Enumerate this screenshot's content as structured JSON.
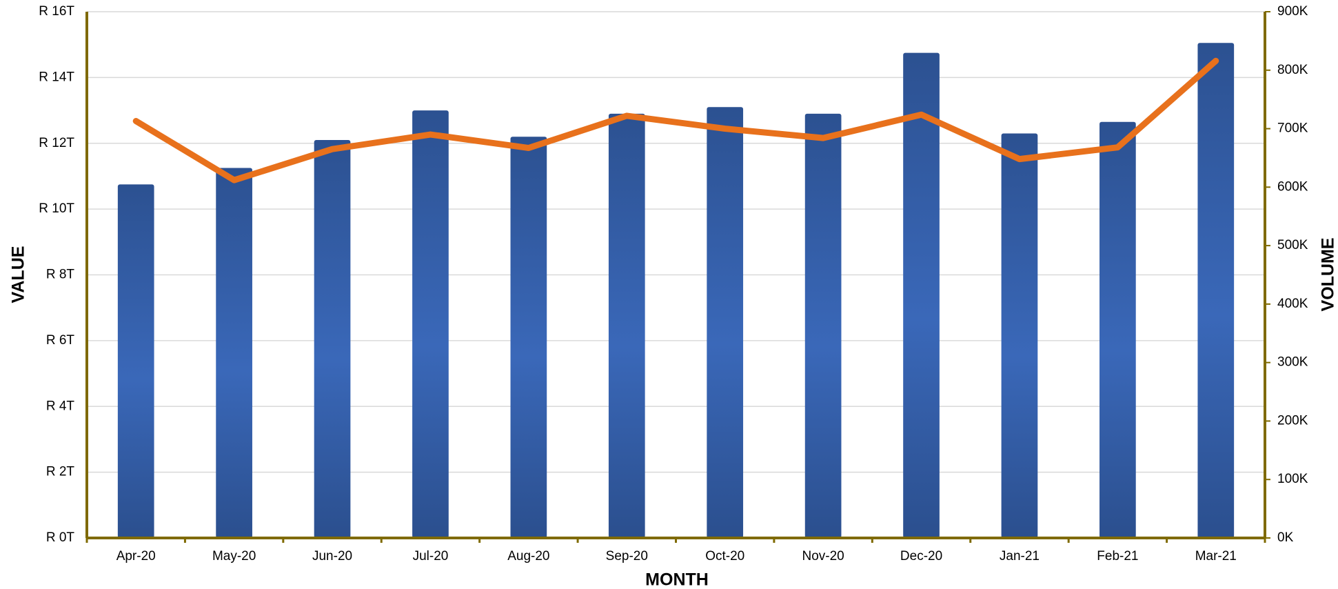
{
  "chart_data": {
    "type": "bar",
    "x_label": "MONTH",
    "y_label": "VALUE",
    "y2_label": "VOLUME",
    "categories": [
      "Apr-20",
      "May-20",
      "Jun-20",
      "Jul-20",
      "Aug-20",
      "Sep-20",
      "Oct-20",
      "Nov-20",
      "Dec-20",
      "Jan-21",
      "Feb-21",
      "Mar-21"
    ],
    "series": [
      {
        "type": "bar",
        "color": "#3462b0",
        "values": [
          10.75,
          11.25,
          12.1,
          13.0,
          12.2,
          12.9,
          13.1,
          12.9,
          14.75,
          12.3,
          12.65,
          15.05
        ]
      },
      {
        "type": "line",
        "axis": "y2",
        "color": "#e8711c",
        "values": [
          713,
          612,
          665,
          690,
          667,
          722,
          700,
          684,
          724,
          648,
          668,
          816
        ]
      }
    ],
    "ylim": [
      0,
      16
    ],
    "yticks": [
      {
        "value": 0,
        "label": "R 0T"
      },
      {
        "value": 2,
        "label": "R 2T"
      },
      {
        "value": 4,
        "label": "R 4T"
      },
      {
        "value": 6,
        "label": "R 6T"
      },
      {
        "value": 8,
        "label": "R 8T"
      },
      {
        "value": 10,
        "label": "R 10T"
      },
      {
        "value": 12,
        "label": "R 12T"
      },
      {
        "value": 14,
        "label": "R 14T"
      },
      {
        "value": 16,
        "label": "R 16T"
      }
    ],
    "y2lim": [
      0,
      900
    ],
    "y2ticks": [
      {
        "value": 0,
        "label": "0K"
      },
      {
        "value": 100,
        "label": "100K"
      },
      {
        "value": 200,
        "label": "200K"
      },
      {
        "value": 300,
        "label": "300K"
      },
      {
        "value": 400,
        "label": "400K"
      },
      {
        "value": 500,
        "label": "500K"
      },
      {
        "value": 600,
        "label": "600K"
      },
      {
        "value": 700,
        "label": "700K"
      },
      {
        "value": 800,
        "label": "800K"
      },
      {
        "value": 900,
        "label": "900K"
      }
    ],
    "grid": true
  }
}
